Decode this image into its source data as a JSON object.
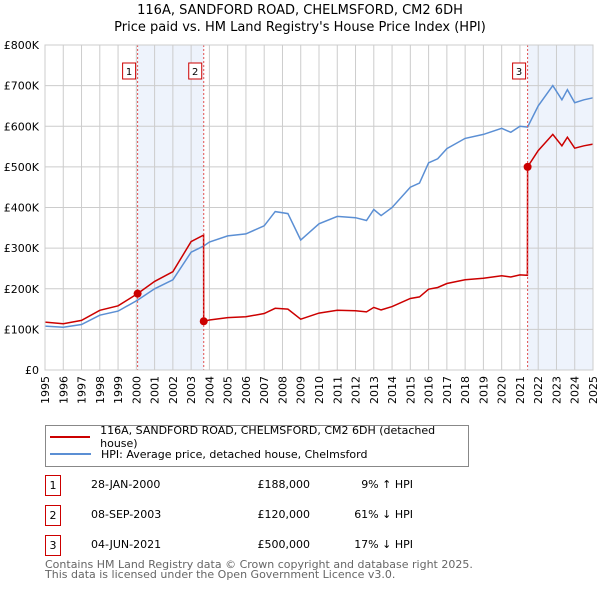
{
  "chart_data": {
    "type": "line",
    "title": "116A, SANDFORD ROAD, CHELMSFORD, CM2 6DH",
    "subtitle": "Price paid vs. HM Land Registry's House Price Index (HPI)",
    "xlabel": "",
    "ylabel": "",
    "xlim": [
      1995,
      2025
    ],
    "ylim": [
      0,
      800000
    ],
    "x_ticks": [
      "1995",
      "1996",
      "1997",
      "1998",
      "1999",
      "2000",
      "2001",
      "2002",
      "2003",
      "2004",
      "2005",
      "2006",
      "2007",
      "2008",
      "2009",
      "2010",
      "2011",
      "2012",
      "2013",
      "2014",
      "2015",
      "2016",
      "2017",
      "2018",
      "2019",
      "2020",
      "2021",
      "2022",
      "2023",
      "2024",
      "2025"
    ],
    "y_ticks": [
      "£0",
      "£100K",
      "£200K",
      "£300K",
      "£400K",
      "£500K",
      "£600K",
      "£700K",
      "£800K"
    ],
    "grid": true,
    "legend_placement": "below",
    "series": [
      {
        "name": "116A, SANDFORD ROAD, CHELMSFORD, CM2 6DH (detached house)",
        "color": "#cc0000",
        "x": [
          1995,
          1996,
          1997,
          1998,
          1999,
          2000.07,
          2001,
          2002,
          2003,
          2003.68,
          2003.69,
          2004,
          2005,
          2006,
          2007,
          2007.6,
          2008.3,
          2009,
          2010,
          2011,
          2012,
          2012.6,
          2013,
          2013.4,
          2014,
          2015,
          2015.5,
          2016,
          2016.5,
          2017,
          2018,
          2019,
          2020,
          2020.5,
          2021,
          2021.41,
          2021.42,
          2022,
          2022.8,
          2023.3,
          2023.6,
          2024,
          2024.5,
          2025
        ],
        "y": [
          118000,
          114000,
          122000,
          147000,
          158000,
          188000,
          218000,
          242000,
          316000,
          332000,
          120000,
          123000,
          129000,
          131000,
          139000,
          152000,
          150000,
          125000,
          140000,
          147000,
          146000,
          143000,
          154000,
          148000,
          156000,
          176000,
          180000,
          199000,
          203000,
          213000,
          222000,
          226000,
          232000,
          229000,
          234000,
          233000,
          500000,
          540000,
          580000,
          552000,
          573000,
          546000,
          552000,
          556000
        ]
      },
      {
        "name": "HPI: Average price, detached house, Chelmsford",
        "color": "#5b8fd4",
        "x": [
          1995,
          1996,
          1997,
          1998,
          1999,
          2000.07,
          2001,
          2002,
          2003,
          2003.68,
          2004,
          2005,
          2006,
          2007,
          2007.6,
          2008.3,
          2009,
          2010,
          2011,
          2012,
          2012.6,
          2013,
          2013.4,
          2014,
          2015,
          2015.5,
          2016,
          2016.5,
          2017,
          2018,
          2019,
          2020,
          2020.5,
          2021,
          2021.42,
          2022,
          2022.8,
          2023.3,
          2023.6,
          2024,
          2024.5,
          2025
        ],
        "y": [
          108000,
          105000,
          112000,
          135000,
          145000,
          172000,
          200000,
          222000,
          290000,
          305000,
          315000,
          330000,
          335000,
          355000,
          390000,
          385000,
          320000,
          360000,
          378000,
          375000,
          368000,
          395000,
          380000,
          400000,
          450000,
          460000,
          510000,
          520000,
          545000,
          570000,
          580000,
          595000,
          585000,
          600000,
          598000,
          650000,
          700000,
          665000,
          690000,
          658000,
          665000,
          670000
        ]
      }
    ],
    "sales": [
      {
        "label": "1",
        "x": 2000.07,
        "y": 188000,
        "date": "28-JAN-2000",
        "price": "£188,000",
        "hpi": "9% ↑ HPI"
      },
      {
        "label": "2",
        "x": 2003.69,
        "y": 120000,
        "date": "08-SEP-2003",
        "price": "£120,000",
        "hpi": "61% ↓ HPI"
      },
      {
        "label": "3",
        "x": 2021.42,
        "y": 500000,
        "date": "04-JUN-2021",
        "price": "£500,000",
        "hpi": "17% ↓ HPI"
      }
    ],
    "shaded_ranges": [
      [
        2000.07,
        2003.69
      ],
      [
        2021.42,
        2025
      ]
    ]
  },
  "footer": {
    "line1": "Contains HM Land Registry data © Crown copyright and database right 2025.",
    "line2": "This data is licensed under the Open Government Licence v3.0."
  }
}
